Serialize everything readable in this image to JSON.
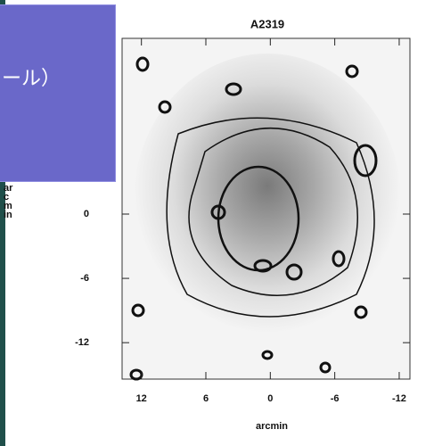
{
  "slide": {
    "overlay_text": "ール）"
  },
  "figure": {
    "title": "A2319",
    "x_label": "arcmin",
    "y_label": "arcmin",
    "xlim": [
      13.8,
      -13.0
    ],
    "ylim": [
      -15.4,
      16.4
    ],
    "xticks": [
      12,
      6,
      0,
      -6,
      -12
    ],
    "yticks": [
      0,
      -6,
      -12
    ]
  }
}
